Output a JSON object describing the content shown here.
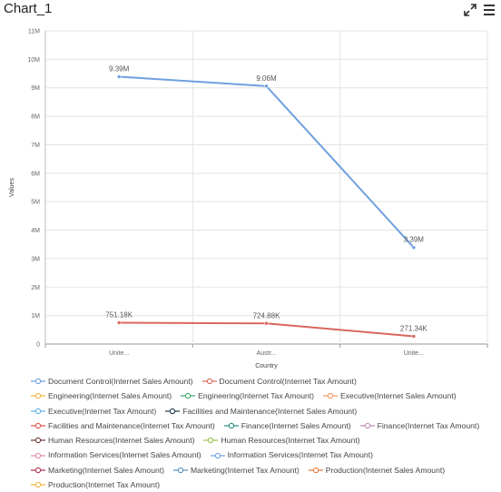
{
  "header": {
    "title": "Chart_1",
    "expand_icon": "expand-arrows-icon",
    "menu_icon": "hamburger-menu-icon"
  },
  "chart_data": {
    "type": "line",
    "categories": [
      "Unite...",
      "Austr...",
      "Unite..."
    ],
    "xlabel": "Country",
    "ylabel": "Values",
    "ylim": [
      0,
      11000000
    ],
    "yticks": [
      0,
      1000000,
      2000000,
      3000000,
      4000000,
      5000000,
      6000000,
      7000000,
      8000000,
      9000000,
      10000000,
      11000000
    ],
    "ytick_labels": [
      "0",
      "1M",
      "2M",
      "3M",
      "4M",
      "5M",
      "6M",
      "7M",
      "8M",
      "9M",
      "10M",
      "11M"
    ],
    "grid": true,
    "legend_position": "bottom",
    "series": [
      {
        "name": "Document Control(Internet Sales Amount)",
        "color": "#6fa0e0",
        "values": [
          9390000,
          9060000,
          3390000
        ],
        "labels": [
          "9.39M",
          "9.06M",
          "3.39M"
        ]
      },
      {
        "name": "Document Control(Internet Tax Amount)",
        "color": "#d9665e",
        "values": [
          751180,
          724880,
          271340
        ],
        "labels": [
          "751.18K",
          "724.88K",
          "271.34K"
        ]
      }
    ],
    "legend": [
      {
        "label": "Document Control(Internet Sales Amount)",
        "color": "#6fa0e0"
      },
      {
        "label": "Document Control(Internet Tax Amount)",
        "color": "#d9665e"
      },
      {
        "label": "Engineering(Internet Sales Amount)",
        "color": "#f0b53a"
      },
      {
        "label": "Engineering(Internet Tax Amount)",
        "color": "#3aa76d"
      },
      {
        "label": "Executive(Internet Sales Amount)",
        "color": "#f29a5a"
      },
      {
        "label": "Executive(Internet Tax Amount)",
        "color": "#5ab4e6"
      },
      {
        "label": "Facilities and Maintenance(Internet Sales Amount)",
        "color": "#1f3a4a"
      },
      {
        "label": "Facilities and Maintenance(Internet Tax Amount)",
        "color": "#e0554a"
      },
      {
        "label": "Finance(Internet Sales Amount)",
        "color": "#2a8a80"
      },
      {
        "label": "Finance(Internet Tax Amount)",
        "color": "#c289b8"
      },
      {
        "label": "Human Resources(Internet Sales Amount)",
        "color": "#6b3a3a"
      },
      {
        "label": "Human Resources(Internet Tax Amount)",
        "color": "#9cc04a"
      },
      {
        "label": "Information Services(Internet Sales Amount)",
        "color": "#e68aa8"
      },
      {
        "label": "Information Services(Internet Tax Amount)",
        "color": "#6fa0e0"
      },
      {
        "label": "Marketing(Internet Sales Amount)",
        "color": "#b03050"
      },
      {
        "label": "Marketing(Internet Tax Amount)",
        "color": "#5a8fc0"
      },
      {
        "label": "Production(Internet Sales Amount)",
        "color": "#e8763a"
      },
      {
        "label": "Production(Internet Tax Amount)",
        "color": "#f0b53a"
      }
    ]
  }
}
